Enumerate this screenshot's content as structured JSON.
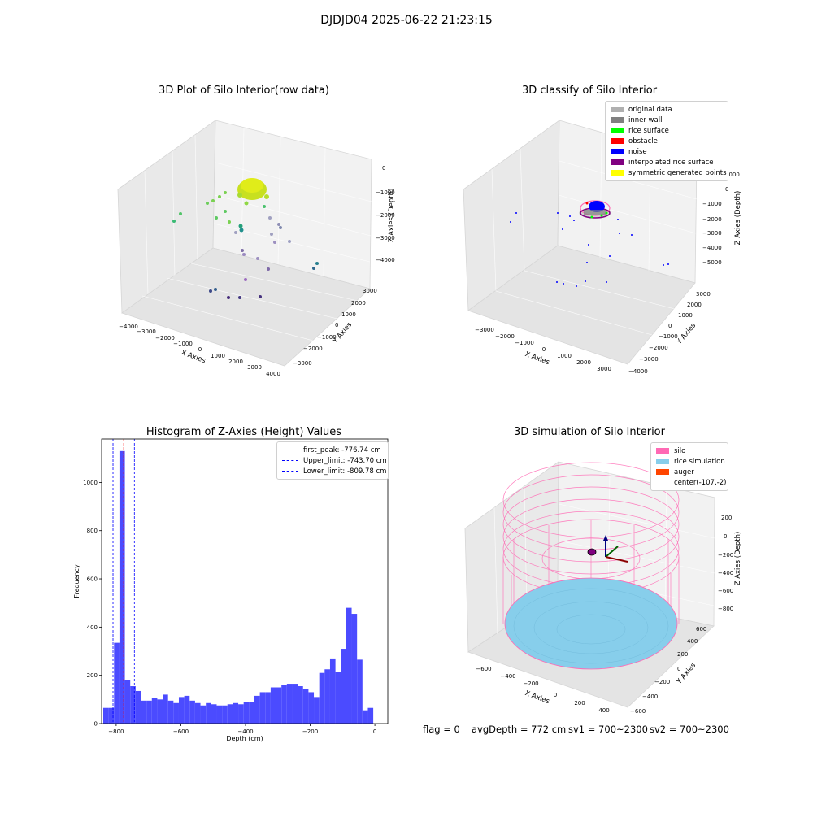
{
  "suptitle": "DJDJD04 2025-06-22 21:23:15",
  "panels": {
    "raw": {
      "title": "3D Plot of Silo Interior(row data)",
      "xlabel": "X Axies",
      "ylabel": "Y Axies",
      "zlabel": "Z Axies (Depth)",
      "xticks": [
        "−4000",
        "−3000",
        "−2000",
        "−1000",
        "0",
        "1000",
        "2000",
        "3000",
        "4000"
      ],
      "yticks": [
        "−3000",
        "−2000",
        "−1000",
        "0",
        "1000",
        "2000",
        "3000"
      ],
      "zticks": [
        "0",
        "−1000",
        "−2000",
        "−3000",
        "−4000"
      ]
    },
    "classify": {
      "title": "3D classify of Silo Interior",
      "xlabel": "X Axies",
      "ylabel": "Y Axies",
      "zlabel": "Z Axies (Depth)",
      "xticks": [
        "−3000",
        "−2000",
        "−1000",
        "0",
        "1000",
        "2000",
        "3000"
      ],
      "yticks": [
        "−4000",
        "−3000",
        "−2000",
        "−1000",
        "0",
        "1000",
        "2000",
        "3000"
      ],
      "zticks": [
        "1000",
        "0",
        "−1000",
        "−2000",
        "−3000",
        "−4000",
        "−5000"
      ],
      "legend": [
        {
          "label": "original data",
          "color": "#b0b0b0"
        },
        {
          "label": "inner wall",
          "color": "#808080"
        },
        {
          "label": "rice surface",
          "color": "#00ff00"
        },
        {
          "label": "obstacle",
          "color": "#ff0000"
        },
        {
          "label": "noise",
          "color": "#0000ff"
        },
        {
          "label": "interpolated rice surface",
          "color": "#800080"
        },
        {
          "label": "symmetric generated points",
          "color": "#ffff00"
        }
      ]
    },
    "hist": {
      "title": "Histogram of Z-Axies (Height) Values",
      "xlabel": "Depth (cm)",
      "ylabel": "Frequency",
      "legend": [
        {
          "label": "first_peak: -776.74 cm",
          "color": "#ff0000"
        },
        {
          "label": "Upper_limit: -743.70 cm",
          "color": "#0000ff"
        },
        {
          "label": "Lower_limit: -809.78 cm",
          "color": "#0000ff"
        }
      ]
    },
    "sim": {
      "title": "3D simulation of Silo Interior",
      "xlabel": "X Axies",
      "ylabel": "Y Axies",
      "zlabel": "Z Axies (Depth)",
      "xticks": [
        "−600",
        "−400",
        "−200",
        "0",
        "200",
        "400"
      ],
      "yticks": [
        "−600",
        "−400",
        "−200",
        "0",
        "200",
        "400",
        "600"
      ],
      "zticks": [
        "200",
        "0",
        "−200",
        "−400",
        "−600",
        "−800"
      ],
      "legend": [
        {
          "label": "silo",
          "color": "#ff69b4"
        },
        {
          "label": "rice simulation",
          "color": "#87ceeb"
        },
        {
          "label": "auger",
          "color": "#ff4500"
        },
        {
          "label": "center(-107,-2)",
          "color": ""
        }
      ]
    }
  },
  "status": {
    "flag": "flag = 0",
    "avg_depth": "avgDepth = 772 cm",
    "sv1": "sv1 = 700~2300",
    "sv2": "sv2 = 700~2300"
  },
  "chart_data": [
    {
      "type": "scatter",
      "title": "3D Plot of Silo Interior(row data)",
      "xlabel": "X Axies",
      "ylabel": "Y Axies",
      "zlabel": "Z Axies (Depth)",
      "xlim": [
        -4000,
        4000
      ],
      "ylim": [
        -3500,
        3500
      ],
      "zlim": [
        -4500,
        200
      ],
      "note_colormap": "viridis by depth"
    },
    {
      "type": "scatter",
      "title": "3D classify of Silo Interior",
      "xlim": [
        -3500,
        3500
      ],
      "ylim": [
        -4000,
        3500
      ],
      "zlim": [
        -5500,
        1000
      ],
      "series": [
        "original data",
        "inner wall",
        "rice surface",
        "obstacle",
        "noise",
        "interpolated rice surface",
        "symmetric generated points"
      ]
    },
    {
      "type": "bar",
      "title": "Histogram of Z-Axies (Height) Values",
      "xlabel": "Depth (cm)",
      "ylabel": "Frequency",
      "xlim": [
        -845,
        40
      ],
      "ylim": [
        0,
        1180
      ],
      "xticks": [
        -800,
        -600,
        -400,
        -200,
        0
      ],
      "yticks": [
        0,
        200,
        400,
        600,
        800,
        1000
      ],
      "bin_start": -840,
      "bin_width": 16.7,
      "values": [
        65,
        65,
        335,
        1130,
        180,
        155,
        135,
        95,
        95,
        105,
        100,
        120,
        95,
        85,
        110,
        115,
        95,
        85,
        75,
        85,
        80,
        75,
        75,
        80,
        85,
        80,
        90,
        90,
        115,
        130,
        130,
        150,
        150,
        160,
        165,
        165,
        155,
        145,
        130,
        110,
        210,
        225,
        270,
        215,
        310,
        480,
        455,
        265,
        55,
        65
      ],
      "vlines": [
        {
          "x": -776.74,
          "color": "#ff0000",
          "label": "first_peak: -776.74 cm"
        },
        {
          "x": -743.7,
          "color": "#0000ff",
          "label": "Upper_limit: -743.70 cm"
        },
        {
          "x": -809.78,
          "color": "#0000ff",
          "label": "Lower_limit: -809.78 cm"
        }
      ]
    },
    {
      "type": "scatter",
      "title": "3D simulation of Silo Interior",
      "xlim": [
        -700,
        500
      ],
      "ylim": [
        -650,
        650
      ],
      "zlim": [
        -900,
        300
      ],
      "series": [
        "silo",
        "rice simulation",
        "auger",
        "center(-107,-2)"
      ]
    }
  ]
}
